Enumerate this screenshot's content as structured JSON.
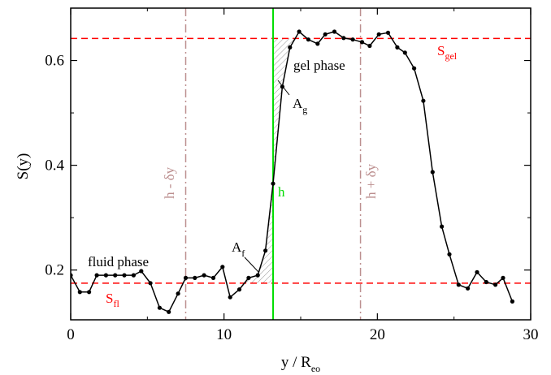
{
  "chart_data": {
    "type": "line",
    "title": "",
    "xlabel_main": "y / R",
    "xlabel_sub": "eo",
    "ylabel": "S(y)",
    "xlim": [
      0,
      30
    ],
    "ylim": [
      0.105,
      0.7
    ],
    "xticks": [
      0,
      10,
      20,
      30
    ],
    "yticks": [
      0.2,
      0.4,
      0.6
    ],
    "xtick_labels": [
      "0",
      "10",
      "20",
      "30"
    ],
    "ytick_labels": [
      "0.2",
      "0.4",
      "0.6"
    ],
    "grid": false,
    "series": [
      {
        "color": "#000000",
        "marker": "circle",
        "x": [
          0.0,
          0.6,
          1.2,
          1.7,
          2.3,
          2.9,
          3.5,
          4.1,
          4.6,
          5.2,
          5.8,
          6.4,
          7.0,
          7.5,
          8.1,
          8.7,
          9.3,
          9.9,
          10.4,
          11.0,
          11.6,
          12.2,
          12.7,
          13.2,
          13.8,
          14.3,
          14.9,
          15.5,
          16.1,
          16.6,
          17.2,
          17.8,
          18.4,
          19.0,
          19.5,
          20.1,
          20.7,
          21.3,
          21.8,
          22.4,
          23.0,
          23.6,
          24.2,
          24.7,
          25.3,
          25.9,
          26.5,
          27.1,
          27.7,
          28.2,
          28.8
        ],
        "y": [
          0.19,
          0.158,
          0.158,
          0.19,
          0.19,
          0.19,
          0.19,
          0.19,
          0.198,
          0.175,
          0.128,
          0.12,
          0.155,
          0.185,
          0.185,
          0.19,
          0.185,
          0.206,
          0.148,
          0.163,
          0.185,
          0.19,
          0.237,
          0.365,
          0.55,
          0.625,
          0.655,
          0.64,
          0.632,
          0.65,
          0.655,
          0.643,
          0.64,
          0.635,
          0.628,
          0.65,
          0.653,
          0.625,
          0.615,
          0.585,
          0.523,
          0.387,
          0.283,
          0.23,
          0.172,
          0.165,
          0.196,
          0.177,
          0.172,
          0.185,
          0.14
        ]
      }
    ],
    "hlines": [
      {
        "y": 0.642,
        "color": "#ff0000",
        "style": "dashed"
      },
      {
        "y": 0.175,
        "color": "#ff0000",
        "style": "dashed"
      }
    ],
    "vlines": [
      {
        "x": 7.5,
        "color": "#bc8f8f",
        "style": "dash-dot"
      },
      {
        "x": 13.2,
        "color": "#00dd00",
        "style": "solid"
      },
      {
        "x": 18.9,
        "color": "#bc8f8f",
        "style": "dash-dot"
      }
    ],
    "annotations": {
      "s_gel_main": "S",
      "s_gel_sub": "gel",
      "s_fl_main": "S",
      "s_fl_sub": "fl",
      "gel_phase": "gel phase",
      "fluid_phase": "fluid phase",
      "a_g_main": "A",
      "a_g_sub": "g",
      "a_f_main": "A",
      "a_f_sub": "f",
      "h": "h",
      "h_minus": "h - δy",
      "h_plus": "h + δy"
    },
    "colors": {
      "series": "#000000",
      "reference_lines": "#ff0000",
      "interface": "#00dd00",
      "bounds": "#bc8f8f"
    }
  }
}
